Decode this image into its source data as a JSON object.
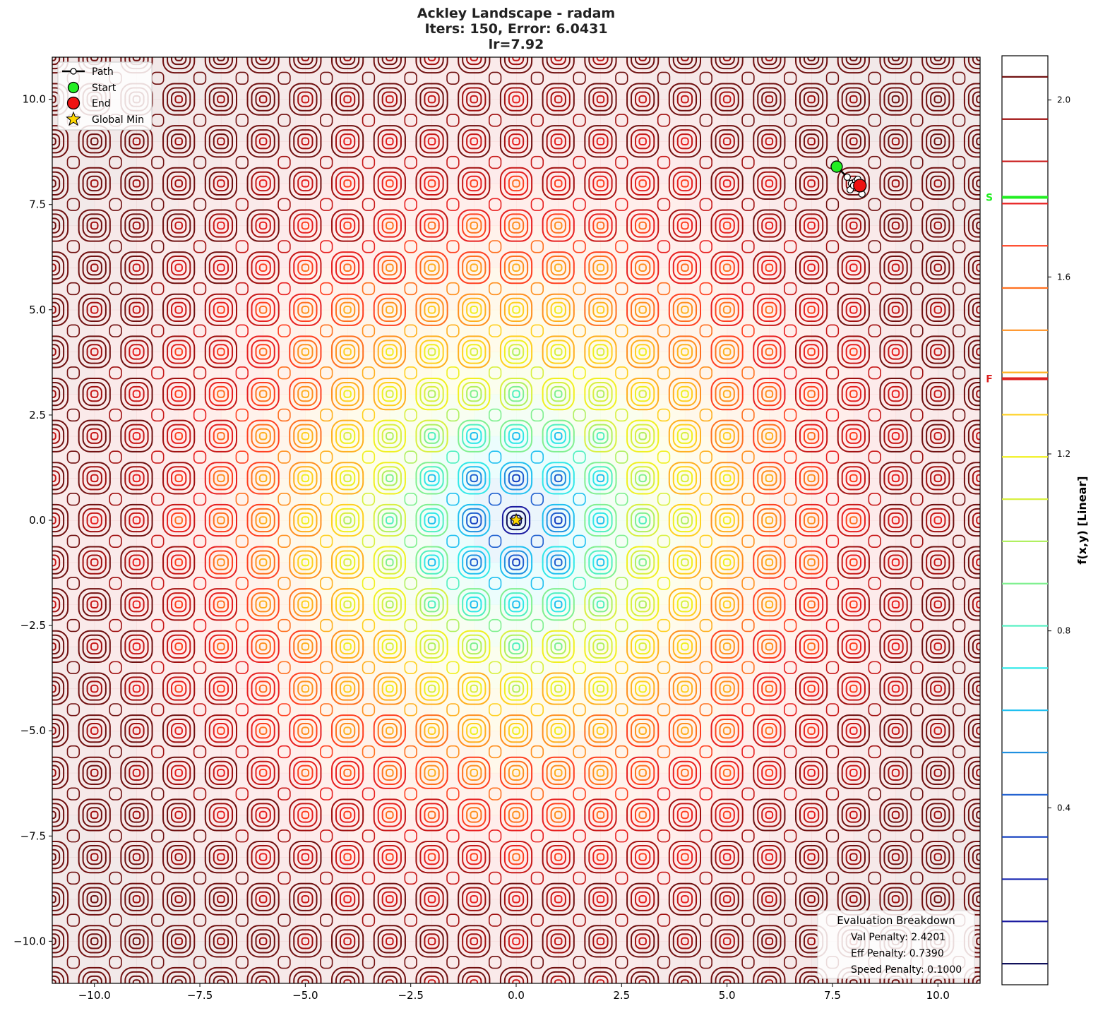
{
  "title": {
    "line1": "Ackley Landscape - radam",
    "line2": "Iters: 150, Error: 6.0431",
    "line3": "lr=7.92"
  },
  "legend": {
    "path": "Path",
    "start": "Start",
    "end": "End",
    "global_min": "Global Min"
  },
  "eval_box": {
    "title": "Evaluation Breakdown",
    "val": "Val Penalty: 2.4201",
    "eff": "Eff Penalty: 0.7390",
    "speed": "Speed Penalty: 0.1000"
  },
  "colorbar": {
    "label": "f(x,y) [Linear]",
    "ticks": [
      "2.0",
      "1.6",
      "1.2",
      "0.8",
      "0.4"
    ],
    "tick_values": [
      2.0,
      1.6,
      1.2,
      0.8,
      0.4
    ],
    "range": [
      0.0,
      2.1
    ],
    "start_marker": {
      "label": "S",
      "value": 1.78,
      "color": "#22ee22"
    },
    "end_marker": {
      "label": "F",
      "value": 1.37,
      "color": "#dd2222"
    }
  },
  "chart_data": {
    "type": "contour",
    "function": "Ackley",
    "xlim": [
      -11,
      11
    ],
    "ylim": [
      -11,
      11
    ],
    "x_ticks": [
      "−10.0",
      "−7.5",
      "−5.0",
      "−2.5",
      "0.0",
      "2.5",
      "5.0",
      "7.5",
      "10.0"
    ],
    "x_tick_values": [
      -10,
      -7.5,
      -5,
      -2.5,
      0,
      2.5,
      5,
      7.5,
      10
    ],
    "y_ticks": [
      "10.0",
      "7.5",
      "5.0",
      "2.5",
      "0.0",
      "−2.5",
      "−5.0",
      "−7.5",
      "−10.0"
    ],
    "y_tick_values": [
      10,
      7.5,
      5,
      2.5,
      0,
      -2.5,
      -5,
      -7.5,
      -10
    ],
    "colors": [
      "#10105a",
      "#1a1aa0",
      "#1020b0",
      "#1540c0",
      "#2060d0",
      "#2090e0",
      "#20c0f0",
      "#30e8e8",
      "#50f0c0",
      "#80f090",
      "#b0f060",
      "#d8f040",
      "#f0f020",
      "#ffd020",
      "#ffb020",
      "#ff9020",
      "#ff7020",
      "#ff4020",
      "#e82020",
      "#c81818",
      "#a01010",
      "#701010"
    ],
    "start": {
      "x": 7.6,
      "y": 8.4
    },
    "end": {
      "x": 8.15,
      "y": 7.95
    },
    "global_min": {
      "x": 0.0,
      "y": 0.0
    },
    "path": [
      {
        "x": 7.6,
        "y": 8.4
      },
      {
        "x": 7.85,
        "y": 8.15
      },
      {
        "x": 7.95,
        "y": 8.0
      },
      {
        "x": 7.92,
        "y": 7.85
      },
      {
        "x": 8.05,
        "y": 8.05
      },
      {
        "x": 8.0,
        "y": 7.95
      },
      {
        "x": 8.1,
        "y": 8.1
      },
      {
        "x": 8.2,
        "y": 7.75
      },
      {
        "x": 8.15,
        "y": 7.95
      }
    ]
  }
}
